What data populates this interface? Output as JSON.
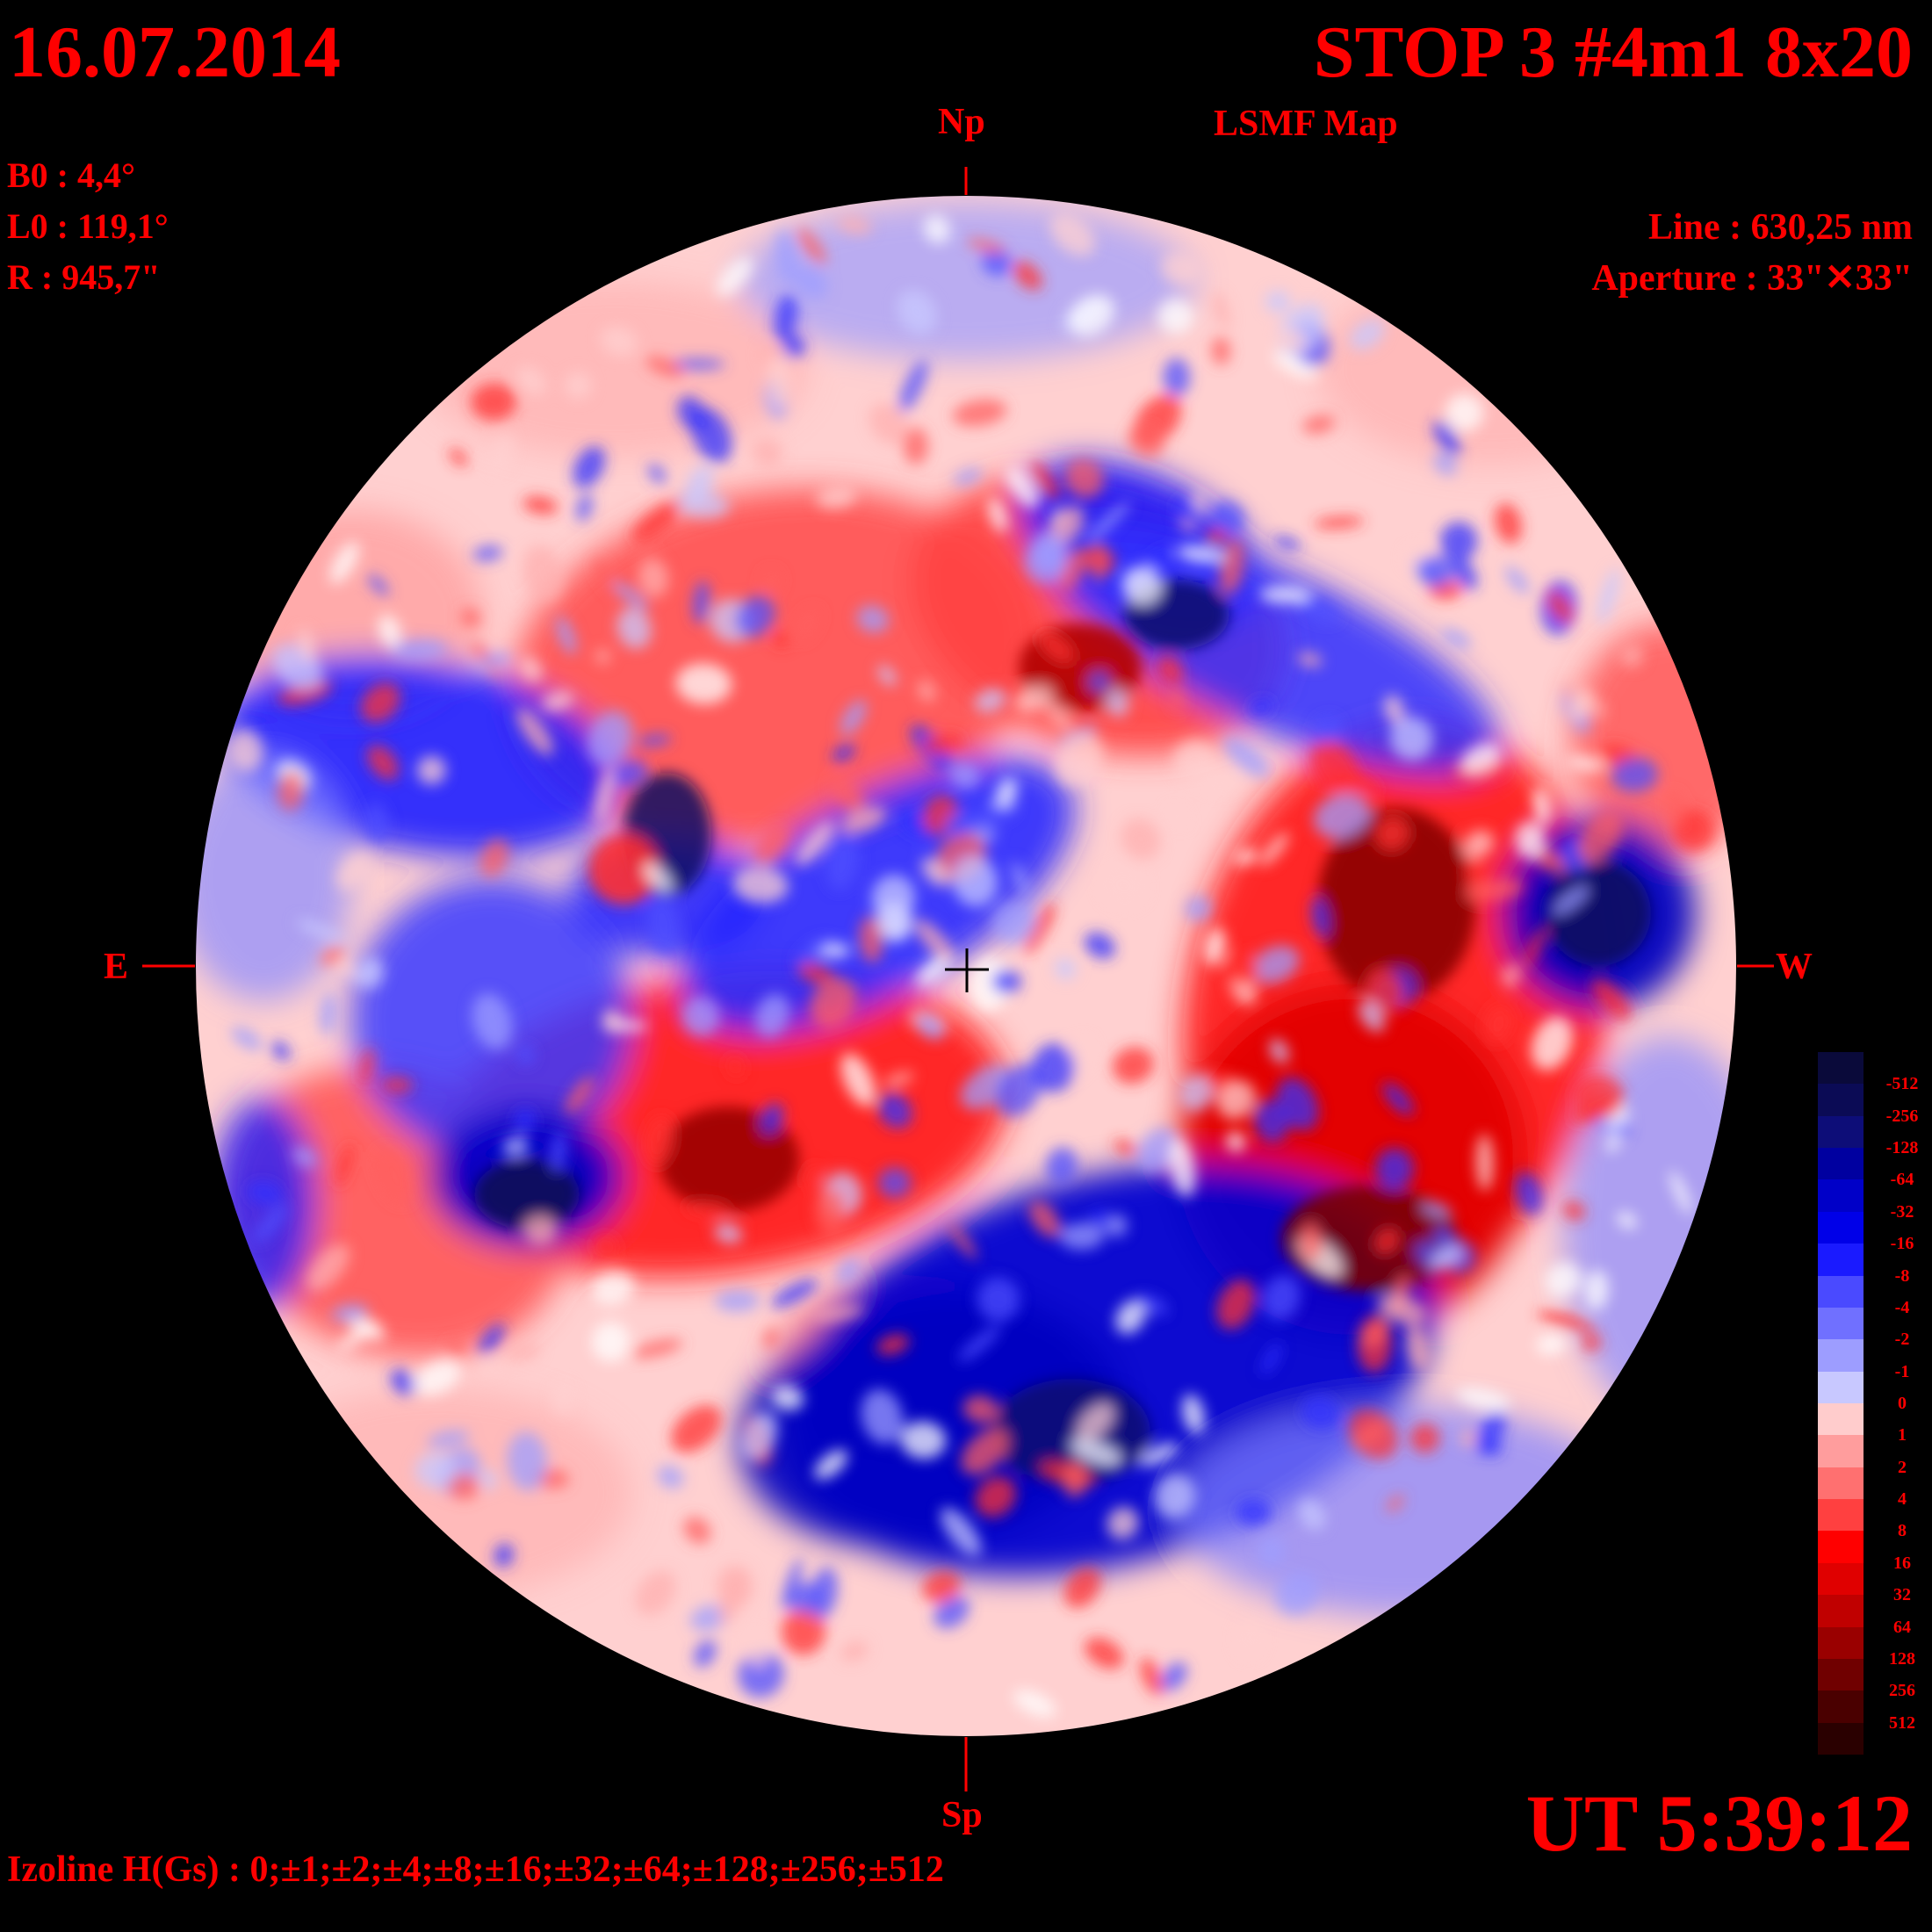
{
  "header": {
    "date": "16.07.2014",
    "title": "STOP 3 #4m1 8x20",
    "map_type": "LSMF  Map"
  },
  "params": {
    "b0": "B0 : 4,4°",
    "l0": "L0 : 119,1°",
    "r": "R  : 945,7\""
  },
  "instrument": {
    "line": "Line :  630,25 nm",
    "aperture": "Aperture : 33\"✕33\""
  },
  "directions": {
    "north": "Np",
    "south": "Sp",
    "east": "E",
    "west": "W"
  },
  "time": "UT 5:39:12",
  "isolines": "Izoline H(Gs) : 0;±1;±2;±4;±8;±16;±32;±64;±128;±256;±512",
  "legend": {
    "labels": [
      "-512",
      "-256",
      "-128",
      "-64",
      "-32",
      "-16",
      "-8",
      "-4",
      "-2",
      "-1",
      "0",
      "1",
      "2",
      "4",
      "8",
      "16",
      "32",
      "64",
      "128",
      "256",
      "512"
    ],
    "colors": [
      "#0a0a3a",
      "#0b0b55",
      "#0d0d78",
      "#0000a0",
      "#0000c8",
      "#0000e8",
      "#1a1aff",
      "#4a4aff",
      "#7070ff",
      "#9d9dff",
      "#c8c8ff",
      "#ffcccc",
      "#ff9d9d",
      "#ff7070",
      "#ff4040",
      "#ff0000",
      "#e00000",
      "#c00000",
      "#9a0000",
      "#700000",
      "#4a0000",
      "#2a0000"
    ]
  },
  "disk_colors": {
    "background": "#000000",
    "neutral": "#ffd6d6"
  },
  "chart_data": {
    "type": "heatmap",
    "title": "",
    "value_units": "H(Gs)",
    "levels": [
      -512,
      -256,
      -128,
      -64,
      -32,
      -16,
      -8,
      -4,
      -2,
      -1,
      0,
      1,
      2,
      4,
      8,
      16,
      32,
      64,
      128,
      256,
      512
    ],
    "regions": [
      {
        "polarity": "positive",
        "level": 64,
        "location": "center-west (right of center)"
      },
      {
        "polarity": "positive",
        "level": 64,
        "location": "lower-west"
      },
      {
        "polarity": "positive",
        "level": 32,
        "location": "left of center below equator"
      },
      {
        "polarity": "positive",
        "level": 16,
        "location": "north-center"
      },
      {
        "polarity": "negative",
        "level": -64,
        "location": "south-center"
      },
      {
        "polarity": "negative",
        "level": -64,
        "location": "far west at equator"
      },
      {
        "polarity": "negative",
        "level": -32,
        "location": "east mid-latitudes"
      },
      {
        "polarity": "negative",
        "level": -32,
        "location": "north-west band"
      }
    ]
  }
}
